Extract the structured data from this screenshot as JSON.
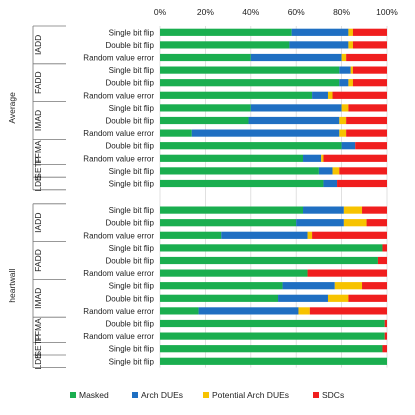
{
  "chart_data": {
    "type": "bar",
    "orientation": "horizontal",
    "stacked": true,
    "title": "",
    "xlabel": "",
    "ylabel": "",
    "xlim": [
      0,
      100
    ],
    "x_ticks": [
      "0%",
      "20%",
      "40%",
      "60%",
      "80%",
      "100%"
    ],
    "x_axis_position": "top",
    "grid": "vertical",
    "legend_position": "bottom",
    "series": [
      {
        "name": "Masked",
        "color": "#1aae4f"
      },
      {
        "name": "Arch DUEs",
        "color": "#1f6fc2"
      },
      {
        "name": "Potential Arch DUEs",
        "color": "#f7c300"
      },
      {
        "name": "SDCs",
        "color": "#f01e1e"
      }
    ],
    "sections": [
      {
        "name": "Average",
        "groups": [
          {
            "name": "IADD",
            "rows": [
              {
                "label": "Single bit flip",
                "values": [
                  58,
                  25,
                  2,
                  15
                ]
              },
              {
                "label": "Double bit flip",
                "values": [
                  57,
                  26,
                  2,
                  15
                ]
              },
              {
                "label": "Random value error",
                "values": [
                  40,
                  40,
                  2,
                  18
                ]
              }
            ]
          },
          {
            "name": "FADD",
            "rows": [
              {
                "label": "Single bit flip",
                "values": [
                  79,
                  5,
                  1,
                  15
                ]
              },
              {
                "label": "Double bit flip",
                "values": [
                  79,
                  4,
                  2,
                  15
                ]
              },
              {
                "label": "Random value error",
                "values": [
                  67,
                  7,
                  2,
                  24
                ]
              }
            ]
          },
          {
            "name": "IMAD",
            "rows": [
              {
                "label": "Single bit flip",
                "values": [
                  40,
                  40,
                  3,
                  17
                ]
              },
              {
                "label": "Double bit flip",
                "values": [
                  39,
                  40,
                  3,
                  18
                ]
              },
              {
                "label": "Random value error",
                "values": [
                  14,
                  65,
                  3,
                  18
                ]
              }
            ]
          },
          {
            "name": "FFMA",
            "rows": [
              {
                "label": "Double bit flip",
                "values": [
                  80,
                  6,
                  0,
                  14
                ]
              },
              {
                "label": "Random value error",
                "values": [
                  63,
                  8,
                  1,
                  28
                ]
              }
            ]
          },
          {
            "name": "ISETP",
            "rows": [
              {
                "label": "Single bit flip",
                "values": [
                  70,
                  6,
                  3,
                  21
                ]
              }
            ]
          },
          {
            "name": "LDS",
            "rows": [
              {
                "label": "Single bit flip",
                "values": [
                  72,
                  6,
                  0,
                  22
                ]
              }
            ]
          }
        ]
      },
      {
        "name": "heartwall",
        "groups": [
          {
            "name": "IADD",
            "rows": [
              {
                "label": "Single bit flip",
                "values": [
                  63,
                  18,
                  8,
                  11
                ]
              },
              {
                "label": "Double bit flip",
                "values": [
                  60,
                  21,
                  10,
                  9
                ]
              },
              {
                "label": "Random value error",
                "values": [
                  27,
                  38,
                  2,
                  33
                ]
              }
            ]
          },
          {
            "name": "FADD",
            "rows": [
              {
                "label": "Single bit flip",
                "values": [
                  98,
                  0,
                  0,
                  2
                ]
              },
              {
                "label": "Double bit flip",
                "values": [
                  96,
                  0,
                  0,
                  4
                ]
              },
              {
                "label": "Random value error",
                "values": [
                  65,
                  0,
                  0,
                  35
                ]
              }
            ]
          },
          {
            "name": "IMAD",
            "rows": [
              {
                "label": "Single bit flip",
                "values": [
                  54,
                  23,
                  12,
                  11
                ]
              },
              {
                "label": "Double bit flip",
                "values": [
                  52,
                  22,
                  9,
                  17
                ]
              },
              {
                "label": "Random value error",
                "values": [
                  17,
                  44,
                  5,
                  34
                ]
              }
            ]
          },
          {
            "name": "FFMA",
            "rows": [
              {
                "label": "Double bit flip",
                "values": [
                  99,
                  0,
                  0,
                  1
                ]
              },
              {
                "label": "Random value error",
                "values": [
                  99,
                  0,
                  0,
                  1
                ]
              }
            ]
          },
          {
            "name": "ISETP",
            "rows": [
              {
                "label": "Single bit flip",
                "values": [
                  98,
                  0,
                  0,
                  2
                ]
              }
            ]
          },
          {
            "name": "LDS",
            "rows": [
              {
                "label": "Single bit flip",
                "values": [
                  100,
                  0,
                  0,
                  0
                ]
              }
            ]
          }
        ]
      }
    ]
  }
}
